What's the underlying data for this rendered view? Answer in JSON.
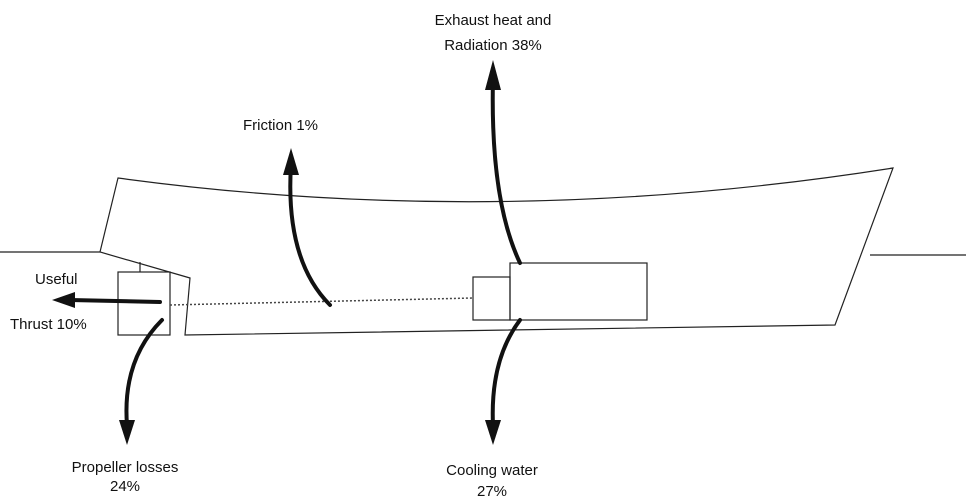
{
  "labels": [
    {
      "lines": [
        "Exhaust heat and",
        "Radiation 38%"
      ]
    },
    {
      "lines": [
        "Friction 1%"
      ]
    },
    {
      "lines": [
        "Useful",
        "Thrust 10%"
      ]
    },
    {
      "lines": [
        "Propeller losses",
        "24%"
      ]
    },
    {
      "lines": [
        "Cooling water",
        "27%"
      ]
    }
  ]
}
